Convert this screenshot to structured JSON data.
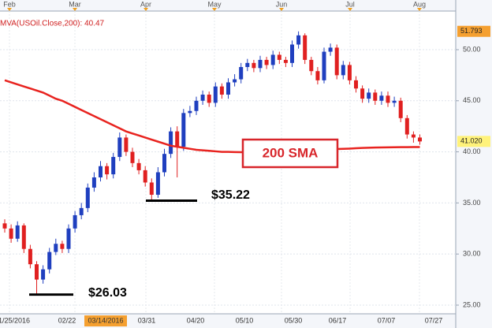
{
  "chart_data": {
    "type": "candlestick",
    "legend_text": "MVA(USOil.Close,200): 40.47",
    "months": [
      "Feb",
      "Mar",
      "Apr",
      "May",
      "Jun",
      "Jul",
      "Aug"
    ],
    "date_labels": [
      "1/25/2016",
      "02/22",
      "03/14/2016",
      "03/31",
      "04/20",
      "05/10",
      "05/30",
      "06/17",
      "07/07",
      "07/27"
    ],
    "up_color": "#1f3fbf",
    "down_color": "#e02020",
    "open": [
      33.0,
      32.5,
      31.5,
      32.8,
      30.5,
      29.0,
      27.5,
      28.5,
      30.2,
      31.0,
      30.5,
      32.5,
      33.8,
      34.5,
      36.5,
      37.5,
      38.6,
      37.8,
      39.5,
      41.4,
      40.0,
      38.9,
      38.2,
      37.0,
      35.8,
      38.0,
      39.8,
      42.0,
      40.5,
      43.8,
      44.0,
      45.0,
      45.6,
      44.8,
      46.4,
      45.6,
      46.8,
      47.1,
      48.3,
      48.7,
      48.2,
      49.0,
      48.5,
      49.5,
      49.0,
      48.7,
      50.5,
      51.4,
      49.0,
      47.9,
      47.0,
      49.8,
      50.2,
      47.5,
      48.5,
      47.0,
      46.2,
      45.2,
      45.8,
      45.0,
      45.5,
      44.8,
      45.0,
      43.3,
      41.7,
      41.4
    ],
    "high": [
      33.4,
      32.9,
      33.2,
      33.0,
      30.9,
      29.3,
      28.9,
      30.6,
      31.5,
      31.3,
      32.9,
      34.2,
      35.0,
      36.9,
      38.0,
      39.1,
      38.9,
      39.9,
      41.9,
      41.7,
      40.4,
      39.3,
      38.6,
      37.4,
      38.5,
      40.3,
      42.4,
      42.5,
      44.2,
      44.5,
      45.4,
      46.0,
      45.9,
      46.8,
      46.7,
      47.2,
      47.6,
      48.7,
      49.1,
      49.0,
      49.4,
      49.3,
      49.9,
      49.8,
      49.3,
      50.9,
      51.79,
      51.6,
      49.3,
      48.3,
      50.2,
      50.6,
      50.5,
      48.9,
      48.8,
      47.4,
      46.5,
      46.2,
      46.1,
      45.9,
      45.9,
      45.4,
      45.3,
      43.6,
      42.0,
      41.7
    ],
    "low": [
      32.1,
      31.1,
      31.2,
      30.1,
      28.6,
      26.03,
      27.1,
      28.1,
      29.9,
      30.1,
      30.1,
      32.1,
      33.4,
      34.1,
      36.1,
      37.1,
      37.3,
      37.4,
      39.1,
      39.6,
      38.5,
      37.8,
      36.6,
      35.22,
      35.5,
      37.6,
      39.4,
      37.5,
      40.1,
      43.4,
      43.6,
      44.6,
      44.4,
      44.4,
      45.2,
      45.2,
      46.4,
      46.7,
      47.9,
      47.8,
      47.8,
      48.1,
      48.1,
      48.6,
      48.3,
      48.3,
      50.1,
      48.6,
      47.5,
      46.6,
      46.7,
      49.4,
      47.1,
      47.1,
      46.6,
      45.8,
      44.8,
      44.8,
      44.6,
      44.6,
      44.4,
      44.4,
      42.9,
      41.3,
      40.9,
      40.7
    ],
    "close": [
      32.5,
      31.5,
      32.8,
      30.5,
      29.0,
      27.5,
      28.5,
      30.2,
      31.0,
      30.5,
      32.5,
      33.8,
      34.5,
      36.5,
      37.5,
      38.6,
      37.8,
      39.5,
      41.4,
      40.0,
      38.9,
      38.2,
      37.0,
      35.8,
      38.0,
      39.8,
      42.0,
      40.5,
      43.8,
      44.0,
      45.0,
      45.6,
      44.8,
      46.4,
      45.6,
      46.8,
      47.1,
      48.3,
      48.7,
      48.2,
      49.0,
      48.5,
      49.5,
      49.0,
      48.7,
      50.5,
      51.4,
      49.0,
      47.9,
      47.0,
      49.8,
      50.2,
      47.5,
      48.5,
      47.0,
      46.2,
      45.2,
      45.8,
      45.0,
      45.5,
      44.8,
      45.0,
      43.3,
      41.7,
      41.4,
      41.02
    ],
    "sma": {
      "name": "200 SMA",
      "color": "#e8231f",
      "values": [
        47.0,
        46.8,
        46.6,
        46.4,
        46.2,
        46.0,
        45.8,
        45.5,
        45.2,
        45.0,
        44.7,
        44.4,
        44.1,
        43.8,
        43.5,
        43.2,
        42.9,
        42.6,
        42.3,
        42.0,
        41.8,
        41.6,
        41.4,
        41.2,
        41.0,
        40.8,
        40.6,
        40.5,
        40.4,
        40.3,
        40.2,
        40.15,
        40.1,
        40.05,
        40.0,
        40.0,
        39.98,
        39.97,
        39.97,
        39.98,
        40.0,
        40.0,
        40.02,
        40.05,
        40.08,
        40.1,
        40.12,
        40.15,
        40.18,
        40.2,
        40.22,
        40.25,
        40.28,
        40.3,
        40.32,
        40.35,
        40.38,
        40.4,
        40.42,
        40.43,
        40.44,
        40.45,
        40.46,
        40.46,
        40.47,
        40.47
      ]
    },
    "ylim": [
      24.15,
      53.78
    ],
    "yticks": [
      {
        "value": 25,
        "label": "25.00"
      },
      {
        "value": 30,
        "label": "30.00"
      },
      {
        "value": 35,
        "label": "35.00"
      },
      {
        "value": 40,
        "label": "40.00"
      },
      {
        "value": 45,
        "label": "45.00"
      },
      {
        "value": 50,
        "label": "50.00"
      }
    ],
    "price_markers": [
      51.793,
      {
        "value": 41.02,
        "label": "41.020"
      }
    ],
    "price_marker_colors": [
      "#f5a030",
      "#fff27a"
    ],
    "annotations": [
      {
        "value": 26.03,
        "label": "$26.03"
      },
      {
        "value": 35.22,
        "label": "$35.22"
      }
    ],
    "grid": true
  }
}
